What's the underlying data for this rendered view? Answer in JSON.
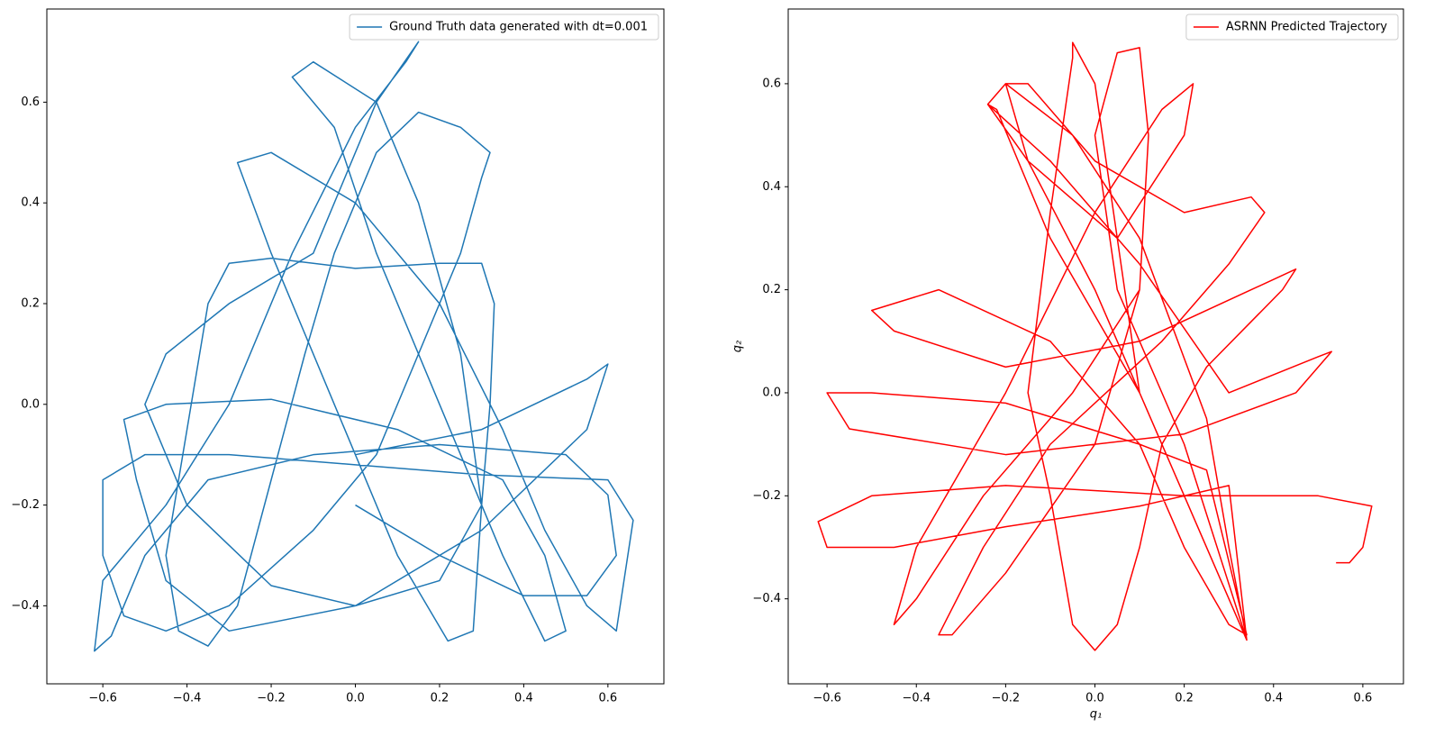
{
  "chart_data": [
    {
      "type": "line",
      "legend": "upper right",
      "x": [
        0,
        0.3,
        0.55,
        0.6,
        0.55,
        0.3,
        0,
        -0.3,
        -0.45,
        -0.52,
        -0.55,
        -0.45,
        -0.2,
        0.1,
        0.35,
        0.45,
        0.5,
        0.45,
        0.35,
        0.2,
        0.05,
        -0.05,
        -0.15,
        -0.1,
        0.05,
        0.15,
        0.25,
        0.3,
        0.28,
        0.22,
        0.1,
        -0.05,
        -0.2,
        -0.28,
        -0.2,
        0,
        0.2,
        0.35,
        0.45,
        0.55,
        0.62,
        0.66,
        0.6,
        0.3,
        0,
        -0.3,
        -0.5,
        -0.6,
        -0.6,
        -0.55,
        -0.45,
        -0.3,
        -0.1,
        0.05,
        0.15,
        0.25,
        0.3,
        0.32,
        0.25,
        0.15,
        0.05,
        -0.05,
        -0.12,
        -0.2,
        -0.28,
        -0.35,
        -0.42,
        -0.45,
        -0.4,
        -0.35,
        -0.3,
        -0.2,
        0,
        0.2,
        0.3,
        0.33,
        0.32,
        0.3,
        0.2,
        0,
        -0.2,
        -0.4,
        -0.5,
        -0.45,
        -0.3,
        -0.1,
        0.05,
        0.15,
        0.12,
        0,
        -0.15,
        -0.3,
        -0.45,
        -0.6,
        -0.62,
        -0.58,
        -0.5,
        -0.35,
        -0.1,
        0.2,
        0.5,
        0.6,
        0.62,
        0.55,
        0.4,
        0.2,
        0
      ],
      "series": [
        {
          "name": "Ground Truth data generated with dt=0.001",
          "color": "#1f77b4",
          "values": [
            -0.1,
            -0.05,
            0.05,
            0.08,
            -0.05,
            -0.25,
            -0.4,
            -0.45,
            -0.35,
            -0.15,
            -0.03,
            0,
            0.01,
            -0.05,
            -0.15,
            -0.3,
            -0.45,
            -0.47,
            -0.3,
            0,
            0.3,
            0.55,
            0.65,
            0.68,
            0.6,
            0.4,
            0.1,
            -0.2,
            -0.45,
            -0.47,
            -0.3,
            0,
            0.3,
            0.48,
            0.5,
            0.4,
            0.2,
            -0.05,
            -0.25,
            -0.4,
            -0.45,
            -0.23,
            -0.15,
            -0.14,
            -0.12,
            -0.1,
            -0.1,
            -0.15,
            -0.3,
            -0.42,
            -0.45,
            -0.4,
            -0.25,
            -0.1,
            0.1,
            0.3,
            0.45,
            0.5,
            0.55,
            0.58,
            0.5,
            0.3,
            0.1,
            -0.15,
            -0.4,
            -0.48,
            -0.45,
            -0.3,
            -0.05,
            0.2,
            0.28,
            0.29,
            0.27,
            0.28,
            0.28,
            0.2,
            0,
            -0.2,
            -0.35,
            -0.4,
            -0.36,
            -0.2,
            0,
            0.1,
            0.2,
            0.3,
            0.6,
            0.72,
            0.68,
            0.55,
            0.3,
            0,
            -0.2,
            -0.35,
            -0.49,
            -0.46,
            -0.3,
            -0.15,
            -0.1,
            -0.08,
            -0.1,
            -0.18,
            -0.3,
            -0.38,
            -0.38,
            -0.3,
            -0.2
          ]
        }
      ],
      "xlim": [
        -0.733,
        0.733
      ],
      "ylim": [
        -0.555,
        0.785
      ],
      "xticks": [
        {
          "value": -0.6,
          "label": "−0.6"
        },
        {
          "value": -0.4,
          "label": "−0.4"
        },
        {
          "value": -0.2,
          "label": "−0.2"
        },
        {
          "value": 0,
          "label": "0.0"
        },
        {
          "value": 0.2,
          "label": "0.2"
        },
        {
          "value": 0.4,
          "label": "0.4"
        },
        {
          "value": 0.6,
          "label": "0.6"
        }
      ],
      "yticks": [
        {
          "value": -0.4,
          "label": "−0.4"
        },
        {
          "value": -0.2,
          "label": "−0.2"
        },
        {
          "value": 0,
          "label": "0.0"
        },
        {
          "value": 0.2,
          "label": "0.2"
        },
        {
          "value": 0.4,
          "label": "0.4"
        },
        {
          "value": 0.6,
          "label": "0.6"
        }
      ]
    },
    {
      "type": "line",
      "legend": "upper right",
      "xlabel": "q₁",
      "ylabel": "q₂",
      "x": [
        0.54,
        0.57,
        0.6,
        0.62,
        0.5,
        0.2,
        -0.2,
        -0.5,
        -0.62,
        -0.6,
        -0.45,
        -0.2,
        0.1,
        0.3,
        0.34,
        0.3,
        0.25,
        0.1,
        -0.05,
        -0.2,
        -0.24,
        -0.1,
        0.1,
        0.3,
        0.5,
        0.53,
        0.45,
        0.2,
        -0.2,
        -0.55,
        -0.6,
        -0.5,
        -0.2,
        0.1,
        0.25,
        0.34,
        0.3,
        0.2,
        0.1,
        -0.1,
        -0.35,
        -0.5,
        -0.45,
        -0.2,
        0.1,
        0.35,
        0.45,
        0.42,
        0.25,
        0.15,
        0.1,
        0.05,
        0,
        -0.05,
        -0.1,
        -0.15,
        -0.1,
        -0.05,
        -0.05,
        0,
        0.05,
        0.1,
        0.3,
        0.34,
        0.2,
        0,
        -0.15,
        -0.2,
        -0.15,
        0,
        0.2,
        0.35,
        0.38,
        0.3,
        0.15,
        -0.1,
        -0.25,
        -0.35,
        -0.32,
        -0.2,
        0,
        0.1,
        0.12,
        0.1,
        0.05,
        0,
        0.05,
        0.2,
        0.34,
        0.25,
        0.1,
        -0.1,
        -0.22,
        -0.24,
        -0.15,
        0.05,
        0.2,
        0.22,
        0.15,
        0,
        -0.2,
        -0.4,
        -0.45,
        -0.4,
        -0.25,
        -0.05,
        0.1
      ],
      "series": [
        {
          "name": "ASRNN Predicted Trajectory",
          "color": "#ff0000",
          "values": [
            -0.33,
            -0.33,
            -0.3,
            -0.22,
            -0.2,
            -0.2,
            -0.18,
            -0.2,
            -0.25,
            -0.3,
            -0.3,
            -0.26,
            -0.22,
            -0.18,
            -0.48,
            -0.3,
            -0.05,
            0.3,
            0.5,
            0.6,
            0.56,
            0.45,
            0.25,
            0,
            0.07,
            0.08,
            0,
            -0.08,
            -0.12,
            -0.07,
            0,
            0,
            -0.02,
            -0.1,
            -0.15,
            -0.47,
            -0.45,
            -0.3,
            -0.1,
            0.1,
            0.2,
            0.16,
            0.12,
            0.05,
            0.1,
            0.2,
            0.24,
            0.2,
            0.05,
            -0.1,
            -0.3,
            -0.45,
            -0.5,
            -0.45,
            -0.2,
            0,
            0.35,
            0.65,
            0.68,
            0.6,
            0.3,
            0,
            -0.4,
            -0.48,
            -0.2,
            0.2,
            0.45,
            0.6,
            0.6,
            0.45,
            0.35,
            0.38,
            0.35,
            0.25,
            0.1,
            -0.1,
            -0.3,
            -0.47,
            -0.47,
            -0.35,
            -0.1,
            0.2,
            0.5,
            0.67,
            0.66,
            0.5,
            0.2,
            -0.1,
            -0.48,
            -0.3,
            0,
            0.3,
            0.55,
            0.56,
            0.45,
            0.3,
            0.5,
            0.6,
            0.55,
            0.35,
            0,
            -0.3,
            -0.45,
            -0.4,
            -0.2,
            0,
            0.2
          ]
        }
      ],
      "xlim": [
        -0.687,
        0.691
      ],
      "ylim": [
        -0.565,
        0.745
      ],
      "xticks": [
        {
          "value": -0.6,
          "label": "−0.6"
        },
        {
          "value": -0.4,
          "label": "−0.4"
        },
        {
          "value": -0.2,
          "label": "−0.2"
        },
        {
          "value": 0,
          "label": "0.0"
        },
        {
          "value": 0.2,
          "label": "0.2"
        },
        {
          "value": 0.4,
          "label": "0.4"
        },
        {
          "value": 0.6,
          "label": "0.6"
        }
      ],
      "yticks": [
        {
          "value": -0.4,
          "label": "−0.4"
        },
        {
          "value": -0.2,
          "label": "−0.2"
        },
        {
          "value": 0,
          "label": "0.0"
        },
        {
          "value": 0.2,
          "label": "0.2"
        },
        {
          "value": 0.4,
          "label": "0.4"
        },
        {
          "value": 0.6,
          "label": "0.6"
        }
      ]
    }
  ]
}
